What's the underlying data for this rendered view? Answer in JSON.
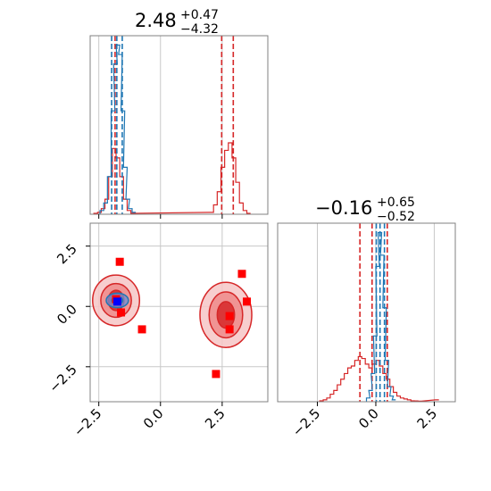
{
  "colors": {
    "samples_a": "#d62728",
    "samples_b": "#1f77b4",
    "points_red": "#ff0000",
    "points_blue": "#0000ff",
    "grid": "#c8c8c8",
    "frame": "#808080"
  },
  "titles": {
    "x0": {
      "main": "2.48",
      "plus": "+0.47",
      "minus": "−4.32"
    },
    "x1": {
      "main": "−0.16",
      "plus": "+0.65",
      "minus": "−0.52"
    }
  },
  "chart_data": [
    {
      "type": "histogram",
      "panel": "x0 marginal",
      "xlim": [
        -2.85,
        4.35
      ],
      "grid": true,
      "x_ticks": [
        -2.5,
        0.0,
        2.5
      ],
      "x_tick_labels_shown": false,
      "series": [
        {
          "color": "red",
          "bins": [
            -2.7,
            -2.55,
            -2.4,
            -2.25,
            -2.1,
            -1.95,
            -1.8,
            -1.65,
            -1.5,
            -1.35,
            -1.2,
            2.0,
            2.15,
            2.3,
            2.45,
            2.6,
            2.75,
            2.9,
            3.05,
            3.2,
            3.35,
            3.5
          ],
          "heights": [
            0.005,
            0.01,
            0.03,
            0.08,
            0.2,
            0.35,
            0.3,
            0.2,
            0.08,
            0.02,
            0.005,
            0.01,
            0.05,
            0.12,
            0.25,
            0.34,
            0.38,
            0.3,
            0.17,
            0.06,
            0.02,
            0.005
          ],
          "quantiles": [
            -1.84,
            2.48,
            2.95
          ]
        },
        {
          "color": "blue",
          "bins": [
            -2.45,
            -2.3,
            -2.15,
            -2.0,
            -1.9,
            -1.8,
            -1.7,
            -1.6,
            -1.5,
            -1.4,
            -1.3,
            -1.15
          ],
          "heights": [
            0.02,
            0.06,
            0.2,
            0.55,
            0.8,
            0.9,
            0.85,
            0.55,
            0.25,
            0.08,
            0.03,
            0.01
          ],
          "quantiles": [
            -1.98,
            -1.77,
            -1.55
          ]
        }
      ]
    },
    {
      "type": "histogram",
      "panel": "x1 marginal",
      "xlim": [
        -4.2,
        3.4
      ],
      "grid": true,
      "x_ticks": [
        -2.5,
        0.0,
        2.5
      ],
      "x_tick_labels": [
        "−2.5",
        "0.0",
        "2.5"
      ],
      "series": [
        {
          "color": "red",
          "bins": [
            -2.4,
            -2.25,
            -2.1,
            -1.95,
            -1.8,
            -1.65,
            -1.5,
            -1.35,
            -1.2,
            -1.05,
            -0.9,
            -0.75,
            -0.6,
            -0.45,
            -0.3,
            -0.15,
            0.0,
            0.15,
            0.3,
            0.45,
            0.6,
            0.75,
            0.9,
            1.05,
            1.2,
            1.35,
            1.5,
            1.65,
            1.8,
            2.55
          ],
          "heights": [
            0.005,
            0.01,
            0.02,
            0.04,
            0.06,
            0.09,
            0.12,
            0.15,
            0.18,
            0.19,
            0.22,
            0.24,
            0.23,
            0.2,
            0.18,
            0.2,
            0.22,
            0.19,
            0.15,
            0.12,
            0.08,
            0.05,
            0.03,
            0.02,
            0.015,
            0.01,
            0.005,
            0.004,
            0.003,
            0.01
          ],
          "quantiles": [
            -0.68,
            -0.16,
            0.49
          ]
        },
        {
          "color": "blue",
          "bins": [
            -0.4,
            -0.3,
            -0.2,
            -0.1,
            0.0,
            0.1,
            0.2,
            0.3,
            0.4,
            0.5,
            0.6,
            0.7
          ],
          "heights": [
            0.02,
            0.06,
            0.15,
            0.35,
            0.72,
            0.9,
            0.78,
            0.5,
            0.22,
            0.08,
            0.03,
            0.01
          ],
          "quantiles": [
            0.02,
            0.18,
            0.37
          ]
        }
      ]
    },
    {
      "type": "scatter",
      "panel": "x0 vs x1",
      "xlim": [
        -2.85,
        4.35
      ],
      "ylim": [
        -3.95,
        3.45
      ],
      "grid": true,
      "x_ticks": [
        -2.5,
        0.0,
        2.5
      ],
      "x_tick_labels": [
        "−2.5",
        "0.0",
        "2.5"
      ],
      "y_ticks": [
        -2.5,
        0.0,
        2.5
      ],
      "y_tick_labels": [
        "−2.5",
        "0.0",
        "2.5"
      ],
      "contours_red": [
        {
          "center": [
            -1.8,
            0.25
          ],
          "radii": [
            [
              0.95,
              1.05
            ],
            [
              0.62,
              0.7
            ],
            [
              0.32,
              0.42
            ]
          ]
        },
        {
          "center": [
            2.65,
            -0.35
          ],
          "radii": [
            [
              1.05,
              1.35
            ],
            [
              0.68,
              0.95
            ],
            [
              0.35,
              0.55
            ]
          ]
        }
      ],
      "contours_blue": [
        {
          "center": [
            -1.75,
            0.25
          ],
          "radii": [
            [
              0.45,
              0.3
            ],
            [
              0.22,
              0.16
            ]
          ]
        }
      ],
      "points_red": [
        [
          -1.65,
          1.85
        ],
        [
          -1.8,
          0.3
        ],
        [
          -1.6,
          -0.25
        ],
        [
          -0.75,
          -0.95
        ],
        [
          3.3,
          1.35
        ],
        [
          3.5,
          0.2
        ],
        [
          2.8,
          -0.4
        ],
        [
          2.8,
          -0.95
        ],
        [
          2.25,
          -2.8
        ]
      ],
      "points_blue": [
        [
          -1.75,
          0.2
        ]
      ]
    }
  ]
}
